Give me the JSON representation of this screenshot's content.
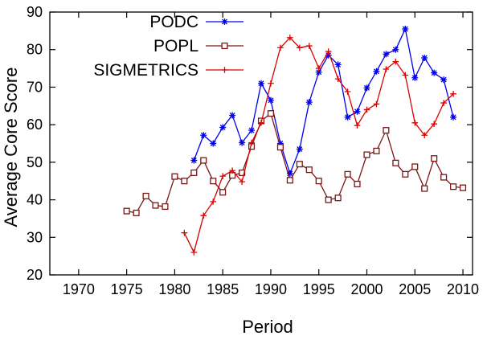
{
  "chart_data": {
    "type": "line",
    "title": "",
    "xlabel": "Period",
    "ylabel": "Average Core Score",
    "xlim": [
      1967,
      2011
    ],
    "ylim": [
      20,
      90
    ],
    "xticks": [
      1970,
      1975,
      1980,
      1985,
      1990,
      1995,
      2000,
      2005,
      2010
    ],
    "yticks": [
      20,
      30,
      40,
      50,
      60,
      70,
      80,
      90
    ],
    "grid": false,
    "legend_position": "top-left",
    "series": [
      {
        "name": "PODC",
        "color": "#0000ee",
        "marker": "star",
        "x": [
          1982,
          1983,
          1984,
          1985,
          1986,
          1987,
          1988,
          1989,
          1990,
          1991,
          1992,
          1993,
          1994,
          1995,
          1996,
          1997,
          1998,
          1999,
          2000,
          2001,
          2002,
          2003,
          2004,
          2005,
          2006,
          2007,
          2008,
          2009
        ],
        "y": [
          50.5,
          57.2,
          55,
          59.3,
          62.5,
          55.2,
          58.5,
          71,
          66.5,
          55,
          47,
          53.5,
          66,
          74,
          78.5,
          76,
          62,
          63.5,
          69.8,
          74.2,
          78.8,
          80,
          85.5,
          72.5,
          77.8,
          73.8,
          72,
          62
        ]
      },
      {
        "name": "POPL",
        "color": "#7a1616",
        "marker": "square",
        "x": [
          1975,
          1976,
          1977,
          1978,
          1979,
          1980,
          1981,
          1982,
          1983,
          1984,
          1985,
          1986,
          1987,
          1988,
          1989,
          1990,
          1991,
          1992,
          1993,
          1994,
          1995,
          1996,
          1997,
          1998,
          1999,
          2000,
          2001,
          2002,
          2003,
          2004,
          2005,
          2006,
          2007,
          2008,
          2009,
          2010
        ],
        "y": [
          37,
          36.5,
          41,
          38.5,
          38.2,
          46.2,
          45,
          47.2,
          50.5,
          45,
          42,
          46.5,
          47.2,
          54.2,
          61,
          63,
          54,
          45.2,
          49.5,
          48,
          45,
          40,
          40.5,
          46.8,
          44.2,
          52,
          53,
          58.5,
          49.8,
          46.8,
          48.8,
          43,
          51,
          46,
          43.5,
          43.2
        ]
      },
      {
        "name": "SIGMETRICS",
        "color": "#dd0000",
        "marker": "plus",
        "x": [
          1981,
          1982,
          1983,
          1984,
          1985,
          1986,
          1987,
          1988,
          1989,
          1990,
          1991,
          1992,
          1993,
          1994,
          1995,
          1996,
          1997,
          1998,
          1999,
          2000,
          2001,
          2002,
          2003,
          2004,
          2005,
          2006,
          2007,
          2008,
          2009
        ],
        "y": [
          31.2,
          26,
          35.8,
          39.5,
          46.3,
          47.8,
          44.8,
          55.2,
          60.5,
          71,
          80.5,
          83.2,
          80.5,
          81,
          75,
          79.5,
          72.2,
          68.8,
          59.8,
          64,
          65.5,
          74.8,
          76.8,
          73.2,
          60.5,
          57.2,
          60.2,
          65.8,
          68.2
        ]
      }
    ]
  }
}
